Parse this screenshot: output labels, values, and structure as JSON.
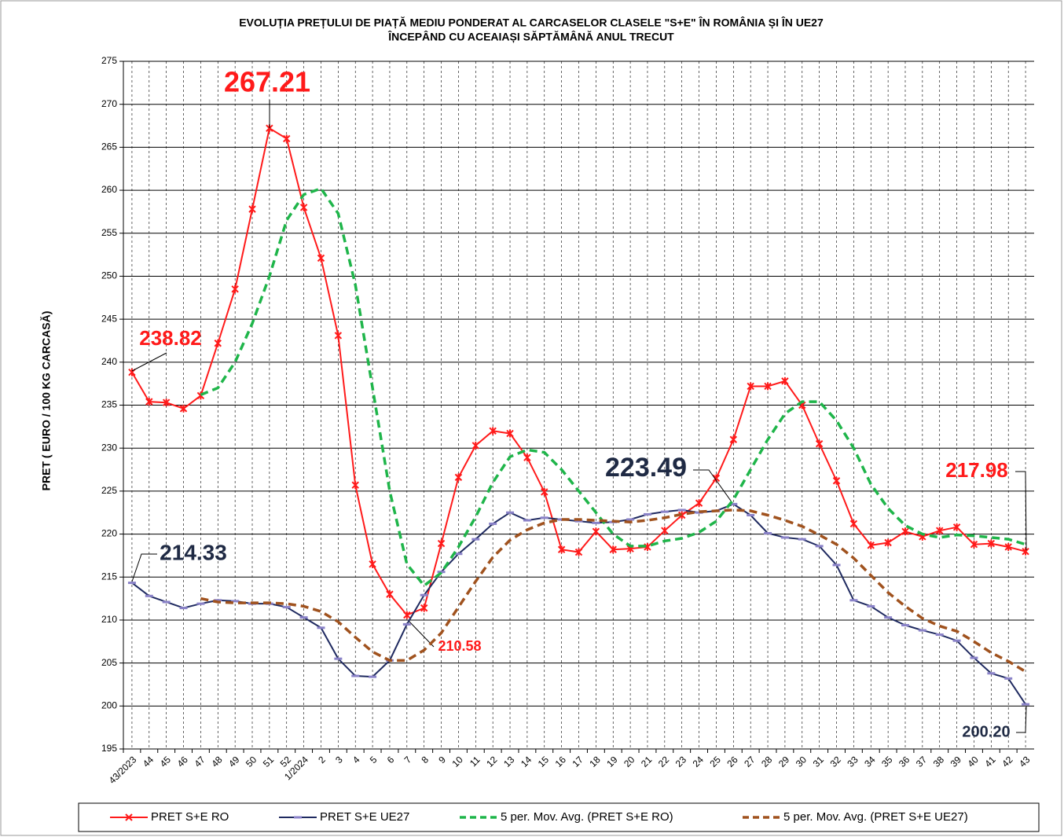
{
  "chart_data": {
    "type": "line",
    "title": "EVOLUȚIA PREȚULUI DE PIAȚĂ MEDIU PONDERAT AL CARCASELOR CLASELE \"S+E\" ÎN ROMÂNIA ȘI ÎN UE27",
    "subtitle": "ÎNCEPÂND CU ACEAIAȘI SĂPTĂMÂNĂ ANUL TRECUT",
    "y_label": "PRET ( EURO / 100 KG CARCASĂ)",
    "categories": [
      "43/2023",
      "44",
      "45",
      "46",
      "47",
      "48",
      "49",
      "50",
      "51",
      "52",
      "1/2024",
      "2",
      "3",
      "4",
      "5",
      "6",
      "7",
      "8",
      "9",
      "10",
      "11",
      "12",
      "13",
      "14",
      "15",
      "16",
      "17",
      "18",
      "19",
      "20",
      "21",
      "22",
      "23",
      "24",
      "25",
      "26",
      "27",
      "28",
      "29",
      "30",
      "31",
      "32",
      "33",
      "34",
      "35",
      "36",
      "37",
      "38",
      "39",
      "40",
      "41",
      "42",
      "43"
    ],
    "ylim": [
      195,
      275
    ],
    "yticks": [
      195,
      200,
      205,
      210,
      215,
      220,
      225,
      230,
      235,
      240,
      245,
      250,
      255,
      260,
      265,
      270,
      275
    ],
    "grid": true,
    "series": [
      {
        "name": "PRET S+E RO",
        "color": "#ff1a1a",
        "marker": "star",
        "values": [
          238.82,
          235.4,
          235.3,
          234.6,
          236.1,
          242.2,
          248.5,
          257.8,
          267.21,
          266.0,
          258.0,
          252.1,
          243.1,
          225.7,
          216.5,
          213.0,
          210.58,
          211.4,
          218.9,
          226.6,
          230.3,
          232.0,
          231.7,
          228.9,
          224.9,
          218.2,
          217.9,
          220.3,
          218.2,
          218.3,
          218.5,
          220.4,
          222.2,
          223.6,
          226.5,
          231.0,
          237.2,
          237.2,
          237.8,
          235.0,
          230.5,
          226.2,
          221.2,
          218.7,
          219.0,
          220.3,
          219.7,
          220.4,
          220.8,
          218.8,
          218.9,
          218.5,
          217.98
        ],
        "value_labels": [
          "238.82",
          null,
          null,
          null,
          null,
          null,
          null,
          null,
          "267.21",
          null,
          null,
          null,
          null,
          null,
          null,
          null,
          "210.58",
          null,
          null,
          null,
          null,
          null,
          null,
          null,
          null,
          null,
          null,
          null,
          null,
          null,
          null,
          null,
          null,
          null,
          null,
          null,
          null,
          null,
          null,
          null,
          null,
          null,
          null,
          null,
          null,
          null,
          null,
          null,
          null,
          null,
          null,
          null,
          "217.98"
        ]
      },
      {
        "name": "PRET S+E UE27",
        "color": "#1f2a60",
        "marker": "dash",
        "values": [
          214.33,
          212.8,
          212.1,
          211.4,
          211.9,
          212.3,
          212.2,
          211.9,
          211.9,
          211.5,
          210.3,
          209.1,
          205.5,
          203.5,
          203.4,
          205.3,
          209.5,
          212.9,
          215.6,
          217.7,
          219.4,
          221.2,
          222.5,
          221.6,
          221.9,
          221.7,
          221.5,
          221.3,
          221.4,
          221.7,
          222.3,
          222.6,
          222.8,
          222.5,
          222.7,
          223.49,
          222.2,
          220.1,
          219.6,
          219.4,
          218.6,
          216.4,
          212.3,
          211.6,
          210.3,
          209.4,
          208.8,
          208.3,
          207.6,
          205.6,
          203.8,
          203.2,
          200.2
        ],
        "value_labels": [
          "214.33",
          null,
          null,
          null,
          null,
          null,
          null,
          null,
          null,
          null,
          null,
          null,
          null,
          null,
          null,
          null,
          null,
          null,
          null,
          null,
          null,
          null,
          null,
          null,
          null,
          null,
          null,
          null,
          null,
          null,
          null,
          null,
          null,
          null,
          null,
          "223.49",
          null,
          null,
          null,
          null,
          null,
          null,
          null,
          null,
          null,
          null,
          null,
          null,
          null,
          null,
          null,
          null,
          "200.20"
        ]
      },
      {
        "name": "5 per. Mov. Avg. (PRET S+E RO)",
        "color": "#1fb54a",
        "dashed": true,
        "values": [
          null,
          null,
          null,
          null,
          236.2,
          237.0,
          240.0,
          244.5,
          250.0,
          256.5,
          259.5,
          260.2,
          257.3,
          249.0,
          237.0,
          225.0,
          216.5,
          214.0,
          215.5,
          218.5,
          222.0,
          226.0,
          229.0,
          229.8,
          229.5,
          227.5,
          225.0,
          222.5,
          220.0,
          218.6,
          218.6,
          219.2,
          219.5,
          220.2,
          221.5,
          224.0,
          227.5,
          231.0,
          234.0,
          235.4,
          235.4,
          233.2,
          230.0,
          225.8,
          223.0,
          221.0,
          220.0,
          219.6,
          219.9,
          219.8,
          219.6,
          219.4,
          218.8
        ]
      },
      {
        "name": "5 per. Mov. Avg. (PRET S+E UE27)",
        "color": "#a0521e",
        "dashed": true,
        "values": [
          null,
          null,
          null,
          null,
          212.5,
          212.1,
          212.0,
          212.0,
          212.0,
          211.9,
          211.6,
          211.0,
          209.8,
          208.0,
          206.3,
          205.3,
          205.3,
          206.5,
          208.5,
          211.5,
          214.5,
          217.3,
          219.3,
          220.5,
          221.3,
          221.7,
          221.7,
          221.6,
          221.5,
          221.4,
          221.6,
          221.9,
          222.3,
          222.6,
          222.7,
          222.8,
          222.7,
          222.2,
          221.6,
          220.9,
          219.9,
          218.8,
          217.2,
          215.2,
          213.2,
          211.6,
          210.2,
          209.3,
          208.7,
          207.5,
          206.2,
          205.2,
          204.0
        ]
      }
    ]
  }
}
